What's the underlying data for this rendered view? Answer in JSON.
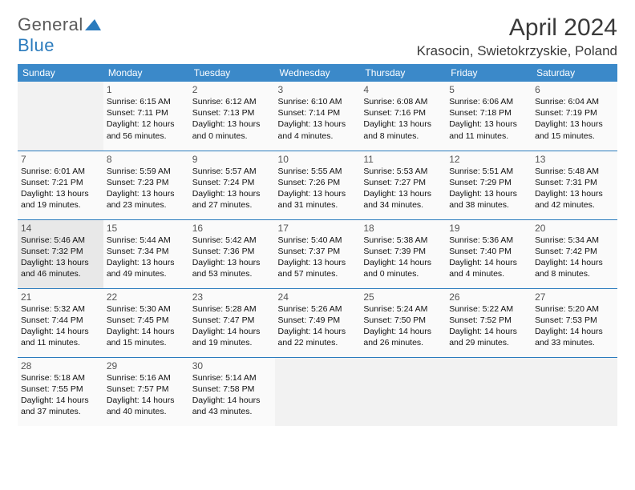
{
  "logo": {
    "text1": "General",
    "text2": "Blue"
  },
  "title": "April 2024",
  "location": "Krasocin, Swietokrzyskie, Poland",
  "colors": {
    "header_bg": "#3b89c9",
    "header_text": "#ffffff",
    "border": "#2b7bbd",
    "logo_gray": "#5a5a5a",
    "logo_blue": "#2b7bbd",
    "cell_bg": "#fafafa",
    "today_bg": "#e8e8e8"
  },
  "day_headers": [
    "Sunday",
    "Monday",
    "Tuesday",
    "Wednesday",
    "Thursday",
    "Friday",
    "Saturday"
  ],
  "weeks": [
    [
      null,
      {
        "n": "1",
        "sr": "6:15 AM",
        "ss": "7:11 PM",
        "dl": "12 hours and 56 minutes."
      },
      {
        "n": "2",
        "sr": "6:12 AM",
        "ss": "7:13 PM",
        "dl": "13 hours and 0 minutes."
      },
      {
        "n": "3",
        "sr": "6:10 AM",
        "ss": "7:14 PM",
        "dl": "13 hours and 4 minutes."
      },
      {
        "n": "4",
        "sr": "6:08 AM",
        "ss": "7:16 PM",
        "dl": "13 hours and 8 minutes."
      },
      {
        "n": "5",
        "sr": "6:06 AM",
        "ss": "7:18 PM",
        "dl": "13 hours and 11 minutes."
      },
      {
        "n": "6",
        "sr": "6:04 AM",
        "ss": "7:19 PM",
        "dl": "13 hours and 15 minutes."
      }
    ],
    [
      {
        "n": "7",
        "sr": "6:01 AM",
        "ss": "7:21 PM",
        "dl": "13 hours and 19 minutes."
      },
      {
        "n": "8",
        "sr": "5:59 AM",
        "ss": "7:23 PM",
        "dl": "13 hours and 23 minutes."
      },
      {
        "n": "9",
        "sr": "5:57 AM",
        "ss": "7:24 PM",
        "dl": "13 hours and 27 minutes."
      },
      {
        "n": "10",
        "sr": "5:55 AM",
        "ss": "7:26 PM",
        "dl": "13 hours and 31 minutes."
      },
      {
        "n": "11",
        "sr": "5:53 AM",
        "ss": "7:27 PM",
        "dl": "13 hours and 34 minutes."
      },
      {
        "n": "12",
        "sr": "5:51 AM",
        "ss": "7:29 PM",
        "dl": "13 hours and 38 minutes."
      },
      {
        "n": "13",
        "sr": "5:48 AM",
        "ss": "7:31 PM",
        "dl": "13 hours and 42 minutes."
      }
    ],
    [
      {
        "n": "14",
        "sr": "5:46 AM",
        "ss": "7:32 PM",
        "dl": "13 hours and 46 minutes.",
        "today": true
      },
      {
        "n": "15",
        "sr": "5:44 AM",
        "ss": "7:34 PM",
        "dl": "13 hours and 49 minutes."
      },
      {
        "n": "16",
        "sr": "5:42 AM",
        "ss": "7:36 PM",
        "dl": "13 hours and 53 minutes."
      },
      {
        "n": "17",
        "sr": "5:40 AM",
        "ss": "7:37 PM",
        "dl": "13 hours and 57 minutes."
      },
      {
        "n": "18",
        "sr": "5:38 AM",
        "ss": "7:39 PM",
        "dl": "14 hours and 0 minutes."
      },
      {
        "n": "19",
        "sr": "5:36 AM",
        "ss": "7:40 PM",
        "dl": "14 hours and 4 minutes."
      },
      {
        "n": "20",
        "sr": "5:34 AM",
        "ss": "7:42 PM",
        "dl": "14 hours and 8 minutes."
      }
    ],
    [
      {
        "n": "21",
        "sr": "5:32 AM",
        "ss": "7:44 PM",
        "dl": "14 hours and 11 minutes."
      },
      {
        "n": "22",
        "sr": "5:30 AM",
        "ss": "7:45 PM",
        "dl": "14 hours and 15 minutes."
      },
      {
        "n": "23",
        "sr": "5:28 AM",
        "ss": "7:47 PM",
        "dl": "14 hours and 19 minutes."
      },
      {
        "n": "24",
        "sr": "5:26 AM",
        "ss": "7:49 PM",
        "dl": "14 hours and 22 minutes."
      },
      {
        "n": "25",
        "sr": "5:24 AM",
        "ss": "7:50 PM",
        "dl": "14 hours and 26 minutes."
      },
      {
        "n": "26",
        "sr": "5:22 AM",
        "ss": "7:52 PM",
        "dl": "14 hours and 29 minutes."
      },
      {
        "n": "27",
        "sr": "5:20 AM",
        "ss": "7:53 PM",
        "dl": "14 hours and 33 minutes."
      }
    ],
    [
      {
        "n": "28",
        "sr": "5:18 AM",
        "ss": "7:55 PM",
        "dl": "14 hours and 37 minutes."
      },
      {
        "n": "29",
        "sr": "5:16 AM",
        "ss": "7:57 PM",
        "dl": "14 hours and 40 minutes."
      },
      {
        "n": "30",
        "sr": "5:14 AM",
        "ss": "7:58 PM",
        "dl": "14 hours and 43 minutes."
      },
      null,
      null,
      null,
      null
    ]
  ],
  "labels": {
    "sunrise": "Sunrise:",
    "sunset": "Sunset:",
    "daylight": "Daylight:"
  }
}
